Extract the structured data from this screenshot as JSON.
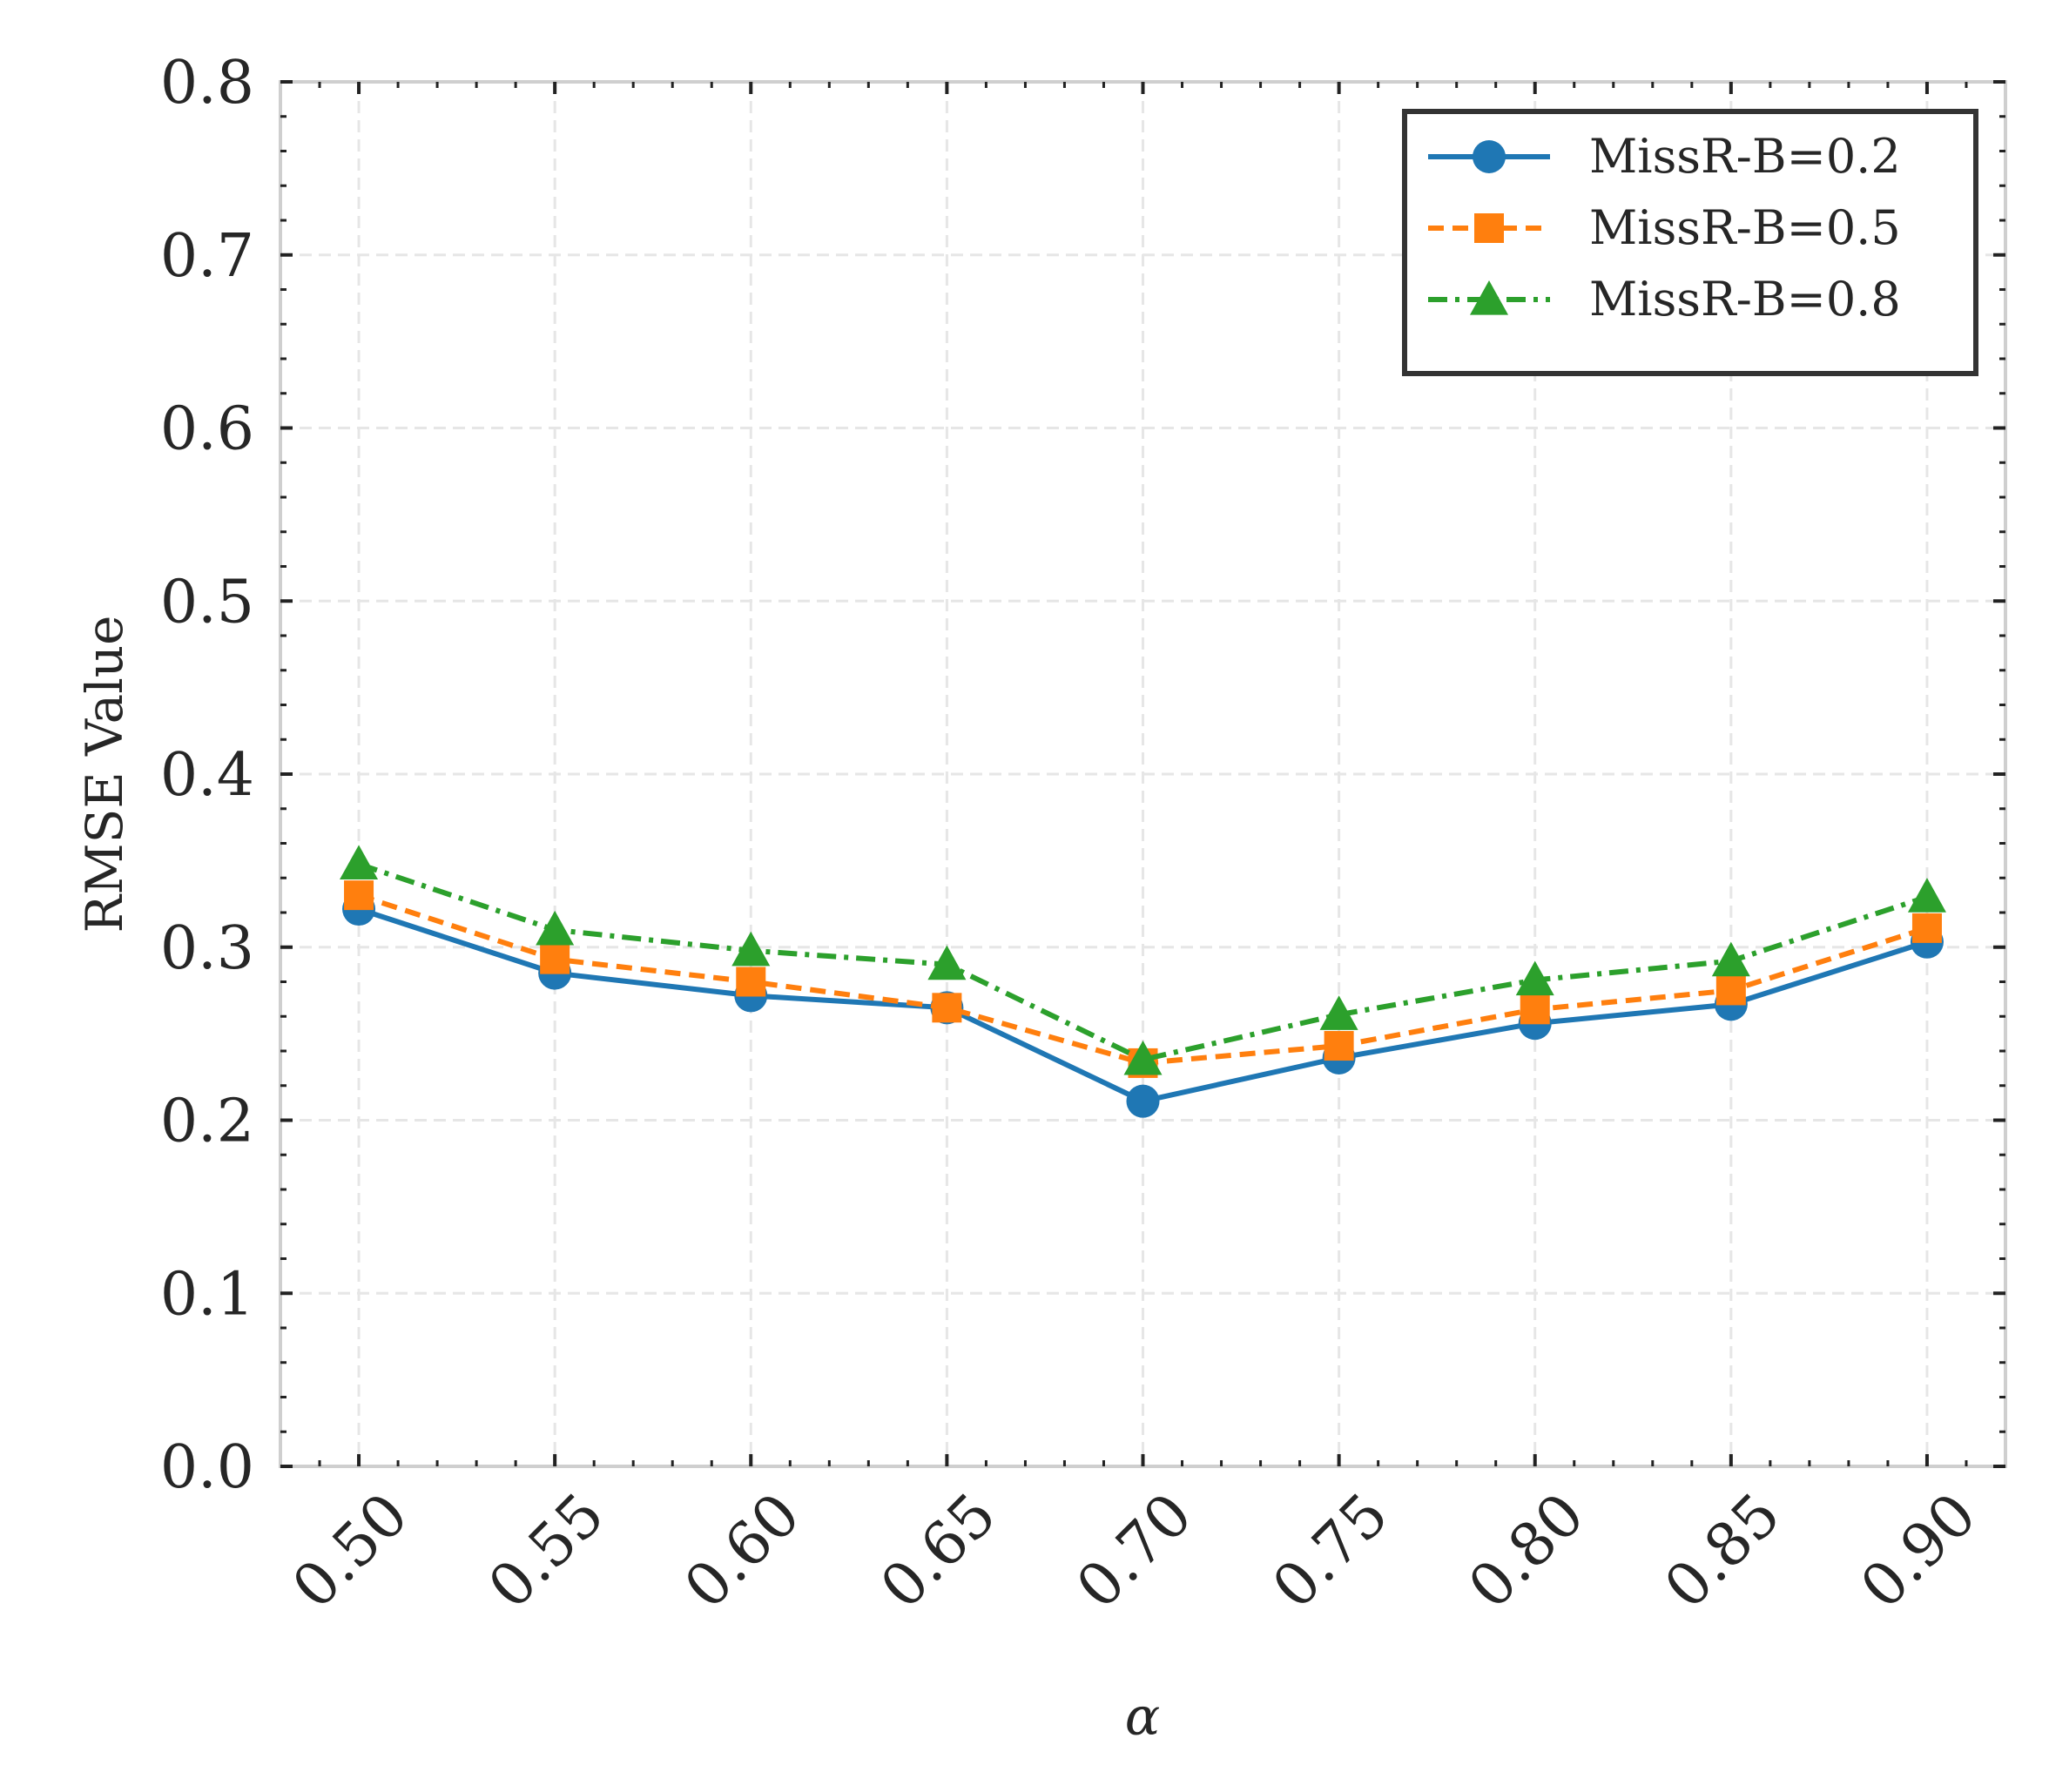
{
  "chart_data": {
    "type": "line",
    "x": [
      0.5,
      0.55,
      0.6,
      0.65,
      0.7,
      0.75,
      0.8,
      0.85,
      0.9
    ],
    "x_tick_labels": [
      "0.50",
      "0.55",
      "0.60",
      "0.65",
      "0.70",
      "0.75",
      "0.80",
      "0.85",
      "0.90"
    ],
    "y_tick_labels": [
      "0.0",
      "0.1",
      "0.2",
      "0.3",
      "0.4",
      "0.5",
      "0.6",
      "0.7",
      "0.8"
    ],
    "xlabel": "α",
    "ylabel": "RMSE Value",
    "ylim": [
      0.0,
      0.8
    ],
    "xlim": [
      0.48,
      0.92
    ],
    "grid": true,
    "legend_position": "top-right",
    "series": [
      {
        "name": "MissR-B=0.2",
        "values": [
          0.322,
          0.285,
          0.272,
          0.265,
          0.211,
          0.236,
          0.256,
          0.267,
          0.303
        ],
        "color": "#1f77b4",
        "marker": "circle",
        "line_style": "solid"
      },
      {
        "name": "MissR-B=0.5",
        "values": [
          0.33,
          0.293,
          0.28,
          0.265,
          0.233,
          0.243,
          0.264,
          0.275,
          0.311
        ],
        "color": "#ff7f0e",
        "marker": "square",
        "line_style": "dashed"
      },
      {
        "name": "MissR-B=0.8",
        "values": [
          0.348,
          0.31,
          0.298,
          0.29,
          0.235,
          0.261,
          0.281,
          0.292,
          0.329
        ],
        "color": "#2ca02c",
        "marker": "triangle",
        "line_style": "dashdot"
      }
    ]
  }
}
